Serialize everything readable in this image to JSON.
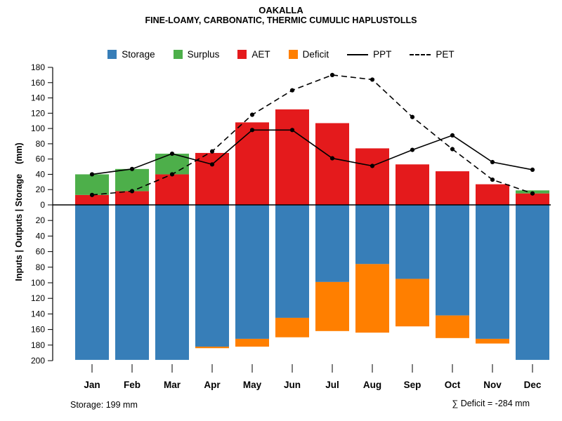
{
  "header": {
    "title": "OAKALLA",
    "subtitle": "FINE-LOAMY, CARBONATIC, THERMIC CUMULIC HAPLUSTOLLS"
  },
  "legend": {
    "items": [
      {
        "label": "Storage",
        "type": "box",
        "color": "#377EB8"
      },
      {
        "label": "Surplus",
        "type": "box",
        "color": "#4DAF4A"
      },
      {
        "label": "AET",
        "type": "box",
        "color": "#E41A1C"
      },
      {
        "label": "Deficit",
        "type": "box",
        "color": "#FF7F00"
      },
      {
        "label": "PPT",
        "type": "solid-line",
        "color": "#000000"
      },
      {
        "label": "PET",
        "type": "dashed-line",
        "color": "#000000"
      }
    ]
  },
  "axes": {
    "y_label": "Inputs | Outputs | Storage    (mm)"
  },
  "annotations": {
    "storage": "Storage: 199 mm",
    "deficit_sum": "∑ Deficit = -284 mm"
  },
  "chart_data": {
    "type": "bar",
    "title": "OAKALLA",
    "subtitle": "FINE-LOAMY, CARBONATIC, THERMIC CUMULIC HAPLUSTOLLS",
    "categories": [
      "Jan",
      "Feb",
      "Mar",
      "Apr",
      "May",
      "Jun",
      "Jul",
      "Aug",
      "Sep",
      "Oct",
      "Nov",
      "Dec"
    ],
    "series": [
      {
        "name": "AET",
        "kind": "bar",
        "direction": "up",
        "color": "#E41A1C",
        "values": [
          13,
          18,
          40,
          68,
          108,
          125,
          107,
          74,
          53,
          44,
          27,
          15
        ]
      },
      {
        "name": "Surplus",
        "kind": "bar",
        "direction": "up",
        "stack_on": "AET",
        "color": "#4DAF4A",
        "values": [
          27,
          29,
          27,
          0,
          0,
          0,
          0,
          0,
          0,
          0,
          0,
          4
        ]
      },
      {
        "name": "Storage",
        "kind": "bar",
        "direction": "down",
        "color": "#377EB8",
        "values": [
          199,
          199,
          199,
          182,
          172,
          145,
          99,
          76,
          95,
          142,
          172,
          199
        ]
      },
      {
        "name": "Deficit",
        "kind": "bar",
        "direction": "down",
        "stack_on": "Storage",
        "color": "#FF7F00",
        "values": [
          0,
          0,
          0,
          2,
          10,
          25,
          63,
          88,
          61,
          29,
          6,
          0
        ]
      },
      {
        "name": "PPT",
        "kind": "line",
        "style": "solid",
        "color": "#000000",
        "values": [
          40,
          47,
          67,
          53,
          98,
          98,
          61,
          51,
          72,
          91,
          56,
          46
        ]
      },
      {
        "name": "PET",
        "kind": "line",
        "style": "dashed",
        "color": "#000000",
        "values": [
          13,
          18,
          40,
          70,
          118,
          150,
          170,
          164,
          115,
          73,
          33,
          15
        ]
      }
    ],
    "y_axis": {
      "label": "Inputs | Outputs | Storage (mm)",
      "top_range": [
        0,
        180
      ],
      "bottom_range": [
        0,
        200
      ],
      "tick_step": 20,
      "grid": false,
      "legend_position": "top-center"
    },
    "annotations": {
      "storage_mm": 199,
      "deficit_sum_mm": -284
    }
  }
}
